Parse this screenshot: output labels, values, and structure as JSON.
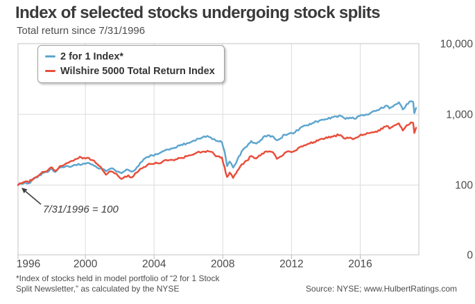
{
  "header": {
    "title": "Index of selected stocks undergoing stock splits",
    "subtitle": "Total return since 7/31/1996"
  },
  "chart_data": {
    "type": "line",
    "title": "Index of selected stocks undergoing stock splits",
    "subtitle": "Total return since 7/31/1996",
    "x_axis": {
      "start_year": 1996.58,
      "end_year": 2019.75,
      "ticks": [
        1996,
        2000,
        2004,
        2008,
        2012,
        2016
      ]
    },
    "y_axis": {
      "scale": "log",
      "tick_labels": [
        "10,000",
        "1,000",
        "100",
        "0"
      ],
      "tick_values": [
        10000,
        1000,
        100,
        0
      ],
      "grid_values": [
        1000,
        100
      ]
    },
    "annotation": {
      "text": "7/31/1996 = 100",
      "arrow_to": [
        1996.58,
        100
      ]
    },
    "series": [
      {
        "name": "2 for 1 Index*",
        "color": "#5EA6CF",
        "points": [
          [
            1996.58,
            100
          ],
          [
            1996.8,
            104
          ],
          [
            1997.0,
            109
          ],
          [
            1997.2,
            106
          ],
          [
            1997.5,
            122
          ],
          [
            1997.7,
            128
          ],
          [
            1998.0,
            147
          ],
          [
            1998.3,
            152
          ],
          [
            1998.55,
            172
          ],
          [
            1998.75,
            153
          ],
          [
            1999.0,
            176
          ],
          [
            1999.3,
            180
          ],
          [
            1999.5,
            184
          ],
          [
            1999.8,
            190
          ],
          [
            2000.1,
            200
          ],
          [
            2000.3,
            195
          ],
          [
            2000.6,
            205
          ],
          [
            2000.9,
            195
          ],
          [
            2001.1,
            184
          ],
          [
            2001.4,
            172
          ],
          [
            2001.7,
            157
          ],
          [
            2001.9,
            168
          ],
          [
            2002.1,
            172
          ],
          [
            2002.4,
            155
          ],
          [
            2002.6,
            147
          ],
          [
            2002.8,
            158
          ],
          [
            2003.0,
            164
          ],
          [
            2003.2,
            155
          ],
          [
            2003.5,
            178
          ],
          [
            2003.8,
            215
          ],
          [
            2004.1,
            250
          ],
          [
            2004.4,
            262
          ],
          [
            2004.7,
            272
          ],
          [
            2005.0,
            300
          ],
          [
            2005.3,
            318
          ],
          [
            2005.6,
            330
          ],
          [
            2006.0,
            362
          ],
          [
            2006.4,
            390
          ],
          [
            2006.7,
            412
          ],
          [
            2007.0,
            450
          ],
          [
            2007.3,
            470
          ],
          [
            2007.6,
            495
          ],
          [
            2007.8,
            470
          ],
          [
            2008.0,
            448
          ],
          [
            2008.2,
            420
          ],
          [
            2008.45,
            400
          ],
          [
            2008.6,
            300
          ],
          [
            2008.75,
            185
          ],
          [
            2008.9,
            215
          ],
          [
            2009.1,
            176
          ],
          [
            2009.35,
            230
          ],
          [
            2009.6,
            300
          ],
          [
            2009.9,
            350
          ],
          [
            2010.15,
            420
          ],
          [
            2010.45,
            385
          ],
          [
            2010.7,
            430
          ],
          [
            2010.95,
            495
          ],
          [
            2011.2,
            505
          ],
          [
            2011.45,
            480
          ],
          [
            2011.65,
            430
          ],
          [
            2011.85,
            455
          ],
          [
            2012.1,
            515
          ],
          [
            2012.4,
            540
          ],
          [
            2012.7,
            555
          ],
          [
            2013.0,
            640
          ],
          [
            2013.4,
            700
          ],
          [
            2013.8,
            760
          ],
          [
            2014.2,
            830
          ],
          [
            2014.6,
            860
          ],
          [
            2015.0,
            935
          ],
          [
            2015.35,
            955
          ],
          [
            2015.65,
            860
          ],
          [
            2015.9,
            900
          ],
          [
            2016.15,
            865
          ],
          [
            2016.45,
            945
          ],
          [
            2016.8,
            990
          ],
          [
            2017.1,
            1050
          ],
          [
            2017.4,
            1110
          ],
          [
            2017.8,
            1230
          ],
          [
            2018.05,
            1330
          ],
          [
            2018.2,
            1210
          ],
          [
            2018.5,
            1360
          ],
          [
            2018.75,
            1480
          ],
          [
            2018.98,
            1170
          ],
          [
            2019.2,
            1390
          ],
          [
            2019.45,
            1530
          ],
          [
            2019.58,
            1500
          ],
          [
            2019.65,
            1040
          ],
          [
            2019.75,
            1230
          ]
        ]
      },
      {
        "name": "Wilshire 5000 Total Return Index",
        "color": "#E94E3B",
        "points": [
          [
            1996.58,
            100
          ],
          [
            1996.8,
            106
          ],
          [
            1997.0,
            112
          ],
          [
            1997.2,
            109
          ],
          [
            1997.5,
            125
          ],
          [
            1997.7,
            132
          ],
          [
            1998.0,
            153
          ],
          [
            1998.3,
            160
          ],
          [
            1998.55,
            178
          ],
          [
            1998.75,
            157
          ],
          [
            1999.0,
            184
          ],
          [
            1999.3,
            196
          ],
          [
            1999.5,
            206
          ],
          [
            1999.8,
            220
          ],
          [
            2000.1,
            240
          ],
          [
            2000.25,
            247
          ],
          [
            2000.5,
            238
          ],
          [
            2000.7,
            242
          ],
          [
            2000.9,
            225
          ],
          [
            2001.1,
            206
          ],
          [
            2001.4,
            180
          ],
          [
            2001.7,
            140
          ],
          [
            2001.9,
            155
          ],
          [
            2002.1,
            153
          ],
          [
            2002.4,
            135
          ],
          [
            2002.6,
            122
          ],
          [
            2002.8,
            132
          ],
          [
            2003.0,
            137
          ],
          [
            2003.2,
            128
          ],
          [
            2003.5,
            150
          ],
          [
            2003.8,
            172
          ],
          [
            2004.1,
            192
          ],
          [
            2004.4,
            198
          ],
          [
            2004.7,
            203
          ],
          [
            2005.0,
            215
          ],
          [
            2005.3,
            222
          ],
          [
            2005.6,
            226
          ],
          [
            2006.0,
            241
          ],
          [
            2006.4,
            255
          ],
          [
            2006.7,
            266
          ],
          [
            2007.0,
            288
          ],
          [
            2007.3,
            295
          ],
          [
            2007.6,
            305
          ],
          [
            2007.8,
            295
          ],
          [
            2008.0,
            272
          ],
          [
            2008.2,
            255
          ],
          [
            2008.45,
            245
          ],
          [
            2008.6,
            180
          ],
          [
            2008.75,
            130
          ],
          [
            2008.9,
            150
          ],
          [
            2009.1,
            126
          ],
          [
            2009.35,
            160
          ],
          [
            2009.6,
            196
          ],
          [
            2009.9,
            222
          ],
          [
            2010.15,
            258
          ],
          [
            2010.45,
            238
          ],
          [
            2010.7,
            262
          ],
          [
            2010.95,
            295
          ],
          [
            2011.2,
            300
          ],
          [
            2011.45,
            285
          ],
          [
            2011.65,
            235
          ],
          [
            2011.85,
            252
          ],
          [
            2012.1,
            285
          ],
          [
            2012.4,
            298
          ],
          [
            2012.7,
            305
          ],
          [
            2013.0,
            345
          ],
          [
            2013.4,
            375
          ],
          [
            2013.8,
            405
          ],
          [
            2014.2,
            448
          ],
          [
            2014.6,
            462
          ],
          [
            2015.0,
            500
          ],
          [
            2015.35,
            510
          ],
          [
            2015.65,
            452
          ],
          [
            2015.9,
            470
          ],
          [
            2016.15,
            452
          ],
          [
            2016.45,
            495
          ],
          [
            2016.8,
            520
          ],
          [
            2017.1,
            548
          ],
          [
            2017.4,
            572
          ],
          [
            2017.8,
            625
          ],
          [
            2018.05,
            688
          ],
          [
            2018.2,
            630
          ],
          [
            2018.5,
            700
          ],
          [
            2018.75,
            745
          ],
          [
            2018.98,
            590
          ],
          [
            2019.2,
            700
          ],
          [
            2019.45,
            770
          ],
          [
            2019.58,
            760
          ],
          [
            2019.65,
            545
          ],
          [
            2019.75,
            645
          ]
        ]
      }
    ]
  },
  "footer": {
    "footnote_line1": "*Index of stocks held in model portfolio of “2 for 1 Stock",
    "footnote_line2": "Split Newsletter,” as calculated by the NYSE",
    "source": "Source: NYSE; www.HulbertRatings.com"
  }
}
